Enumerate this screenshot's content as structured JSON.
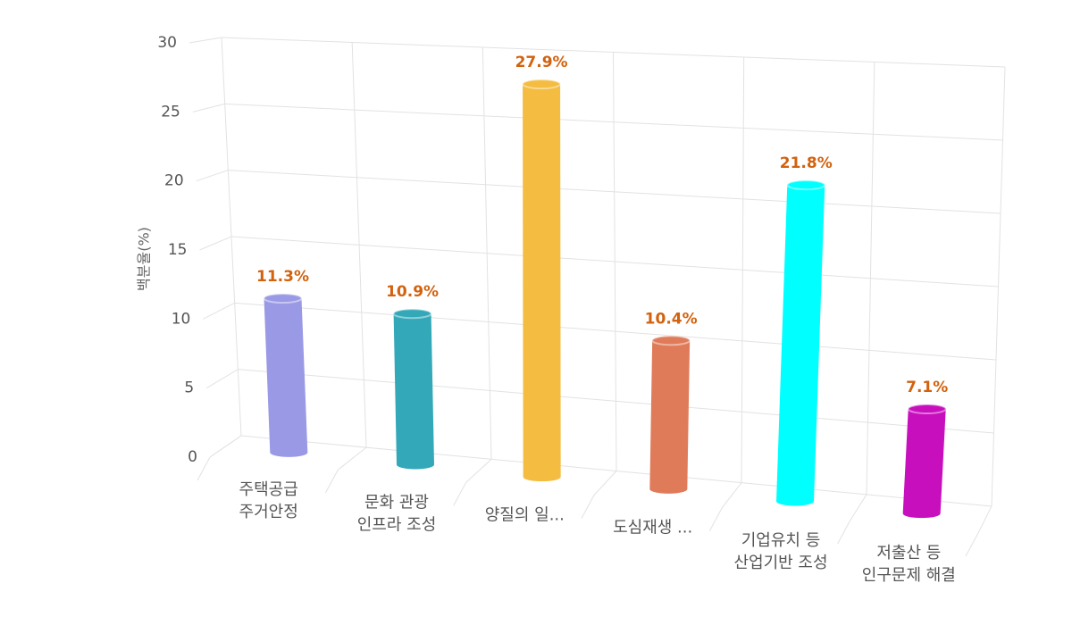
{
  "chart_data": {
    "type": "cylinder",
    "y_axis_label": "백분율(%)",
    "categories": [
      [
        "주택공급",
        "주거안정"
      ],
      [
        "문화 관광",
        "인프라 조성"
      ],
      [
        "양질의 일..."
      ],
      [
        "도심재생 ..."
      ],
      [
        "기업유치 등",
        "산업기반 조성"
      ],
      [
        "저출산 등",
        "인구문제 해결"
      ]
    ],
    "values": [
      11.3,
      10.9,
      27.9,
      10.4,
      21.8,
      7.1
    ],
    "value_labels": [
      "11.3%",
      "10.9%",
      "27.9%",
      "10.4%",
      "21.8%",
      "7.1%"
    ],
    "colors": [
      "#9999e6",
      "#33a8b8",
      "#f4bc40",
      "#e07b5a",
      "#00ffff",
      "#c80fbe"
    ],
    "value_label_color": "#d2620e",
    "ylim": [
      0,
      30
    ],
    "yticks": [
      0,
      5,
      10,
      15,
      20,
      25,
      30
    ],
    "grid": true
  }
}
